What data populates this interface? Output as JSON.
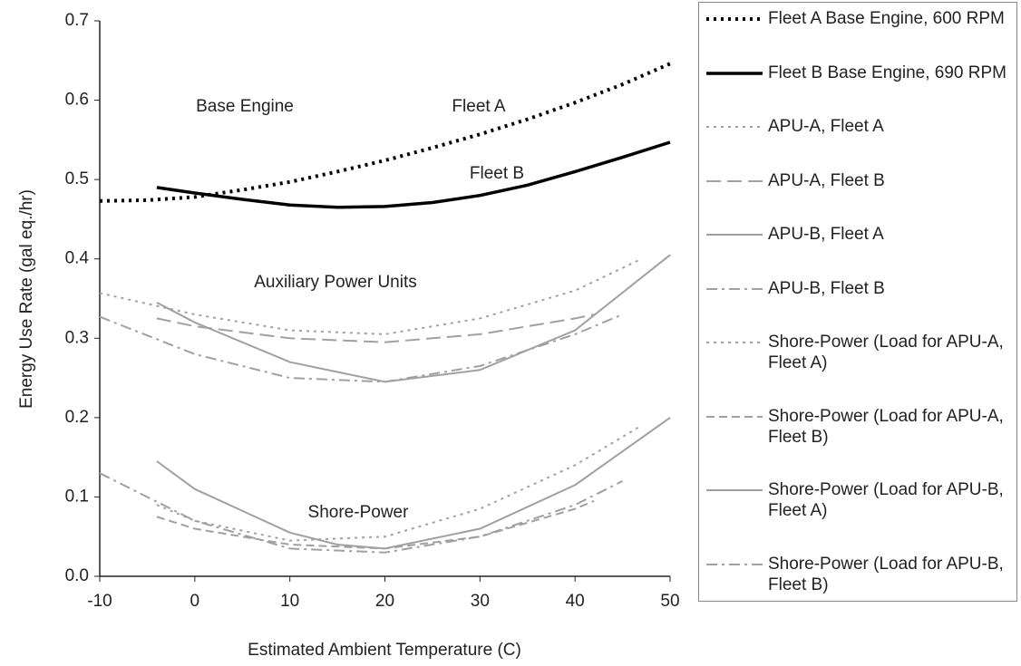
{
  "chart_data": {
    "type": "line",
    "ylabel": "Energy Use Rate (gal eq./hr)",
    "xlabel": "Estimated Ambient Temperature (C)",
    "xlim": [
      -10,
      50
    ],
    "xticks": [
      -10,
      0,
      10,
      20,
      30,
      40,
      50
    ],
    "ylim": [
      0,
      0.7
    ],
    "yticks": [
      {
        "value": 0,
        "label": "0.0"
      },
      0.1,
      0.2,
      0.3,
      0.4,
      0.5,
      0.6,
      0.7
    ],
    "annotations": [
      "Base Engine",
      "Fleet A",
      "Fleet B",
      "Auxiliary Power Units",
      "Shore-Power"
    ],
    "series": [
      {
        "name": "Fleet A Base Engine, 600 RPM",
        "color": "#000000",
        "style": "dotted",
        "width": 4,
        "x": [
          -10,
          -5,
          0,
          5,
          10,
          15,
          20,
          25,
          30,
          35,
          40,
          45,
          50
        ],
        "values": [
          0.473,
          0.474,
          0.478,
          0.487,
          0.497,
          0.51,
          0.524,
          0.54,
          0.557,
          0.576,
          0.597,
          0.62,
          0.646
        ]
      },
      {
        "name": "Fleet B Base Engine, 690 RPM",
        "color": "#000000",
        "style": "solid",
        "width": 3.5,
        "x": [
          -4,
          0,
          5,
          10,
          15,
          20,
          25,
          30,
          35,
          40,
          45,
          50
        ],
        "values": [
          0.49,
          0.483,
          0.475,
          0.468,
          0.465,
          0.466,
          0.471,
          0.48,
          0.493,
          0.51,
          0.528,
          0.547
        ]
      },
      {
        "name": "APU-A, Fleet A",
        "color": "#a0a0a0",
        "style": "dotted",
        "width": 2,
        "x": [
          -10,
          0,
          10,
          20,
          30,
          40,
          47
        ],
        "values": [
          0.357,
          0.33,
          0.31,
          0.305,
          0.325,
          0.36,
          0.4
        ]
      },
      {
        "name": "APU-A, Fleet B",
        "color": "#a0a0a0",
        "style": "long-dash",
        "width": 2,
        "x": [
          -4,
          0,
          10,
          20,
          30,
          40,
          42
        ],
        "values": [
          0.325,
          0.315,
          0.3,
          0.295,
          0.305,
          0.325,
          0.33
        ]
      },
      {
        "name": "APU-B, Fleet A",
        "color": "#a0a0a0",
        "style": "solid",
        "width": 2,
        "x": [
          -4,
          0,
          10,
          20,
          30,
          40,
          50
        ],
        "values": [
          0.345,
          0.32,
          0.27,
          0.245,
          0.26,
          0.31,
          0.405
        ]
      },
      {
        "name": "APU-B, Fleet B",
        "color": "#a0a0a0",
        "style": "dash-dot",
        "width": 2,
        "x": [
          -10,
          0,
          10,
          20,
          30,
          40,
          45
        ],
        "values": [
          0.327,
          0.28,
          0.25,
          0.245,
          0.265,
          0.305,
          0.33
        ]
      },
      {
        "name": "Shore-Power (Load for APU-A, Fleet A)",
        "color": "#a0a0a0",
        "style": "dotted",
        "width": 2,
        "x": [
          -4,
          0,
          10,
          20,
          30,
          40,
          47
        ],
        "values": [
          0.09,
          0.07,
          0.045,
          0.05,
          0.085,
          0.14,
          0.19
        ]
      },
      {
        "name": "Shore-Power (Load for APU-A, Fleet B)",
        "color": "#a0a0a0",
        "style": "dashed",
        "width": 2,
        "x": [
          -4,
          0,
          10,
          20,
          30,
          40,
          42
        ],
        "values": [
          0.075,
          0.06,
          0.04,
          0.035,
          0.05,
          0.085,
          0.095
        ]
      },
      {
        "name": "Shore-Power (Load for APU-B, Fleet A)",
        "color": "#a0a0a0",
        "style": "solid",
        "width": 2,
        "x": [
          -4,
          0,
          10,
          15,
          20,
          30,
          40,
          50
        ],
        "values": [
          0.145,
          0.11,
          0.055,
          0.04,
          0.035,
          0.06,
          0.115,
          0.2
        ]
      },
      {
        "name": "Shore-Power (Load for APU-B, Fleet B)",
        "color": "#a0a0a0",
        "style": "dash-dot",
        "width": 2,
        "x": [
          -10,
          0,
          10,
          20,
          30,
          40,
          45
        ],
        "values": [
          0.13,
          0.07,
          0.035,
          0.03,
          0.05,
          0.09,
          0.12
        ]
      }
    ]
  }
}
